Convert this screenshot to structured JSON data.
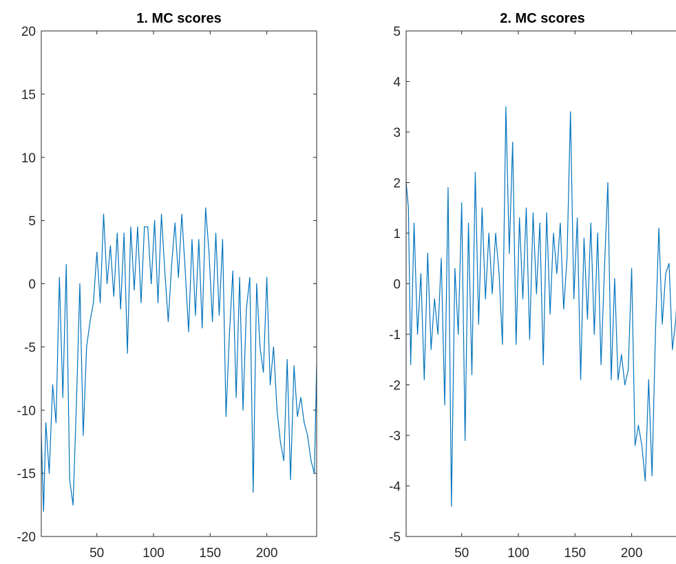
{
  "colors": {
    "line": "#0072BD",
    "axes": "#262626",
    "background": "#ffffff"
  },
  "chart_data": [
    {
      "type": "line",
      "title": "1. MC scores",
      "xlim": [
        1,
        244
      ],
      "ylim": [
        -20,
        20
      ],
      "xticks": [
        50,
        100,
        150,
        200
      ],
      "yticks": [
        -20,
        -15,
        -10,
        -5,
        0,
        5,
        10,
        15,
        20
      ],
      "xtick_labels": [
        "50",
        "100",
        "150",
        "200"
      ],
      "ytick_labels": [
        "-20",
        "-15",
        "-10",
        "-5",
        "0",
        "5",
        "10",
        "15",
        "20"
      ],
      "grid": false,
      "series": [
        {
          "x": [
            1,
            3,
            5,
            8,
            11,
            14,
            17,
            20,
            23,
            26,
            29,
            32,
            35,
            38,
            41,
            44,
            47,
            50,
            53,
            56,
            59,
            62,
            65,
            68,
            71,
            74,
            77,
            80,
            83,
            86,
            89,
            92,
            95,
            98,
            101,
            104,
            107,
            110,
            113,
            116,
            119,
            122,
            125,
            128,
            131,
            134,
            137,
            140,
            143,
            146,
            149,
            152,
            155,
            158,
            161,
            164,
            167,
            170,
            173,
            176,
            179,
            182,
            185,
            188,
            191,
            194,
            197,
            200,
            203,
            206,
            209,
            212,
            215,
            218,
            221,
            224,
            227,
            230,
            233,
            236,
            239,
            242,
            244
          ],
          "values": [
            -12.0,
            -18.0,
            -11.0,
            -15.0,
            -8.0,
            -11.0,
            0.5,
            -9.0,
            1.5,
            -15.5,
            -17.5,
            -9.5,
            0.0,
            -12.0,
            -5.0,
            -3.0,
            -1.5,
            2.5,
            -1.5,
            5.5,
            0.0,
            3.0,
            -1.0,
            4.0,
            -2.0,
            4.0,
            -5.5,
            4.5,
            -0.5,
            4.5,
            -1.5,
            4.5,
            4.5,
            0.0,
            5.0,
            -1.5,
            5.5,
            1.0,
            -3.0,
            1.5,
            4.8,
            0.5,
            5.5,
            1.0,
            -3.8,
            3.5,
            -2.5,
            3.5,
            -3.5,
            6.0,
            2.5,
            -3.0,
            4.0,
            -2.5,
            3.5,
            -10.5,
            -4.0,
            1.0,
            -9.0,
            0.5,
            -10.0,
            -2.0,
            0.5,
            -16.5,
            0.0,
            -5.0,
            -7.0,
            0.5,
            -8.0,
            -5.0,
            -10.0,
            -12.5,
            -14.0,
            -6.0,
            -15.5,
            -6.5,
            -10.5,
            -9.0,
            -11.0,
            -12.0,
            -14.0,
            -15.0,
            -6.5
          ]
        }
      ]
    },
    {
      "type": "line",
      "title": "2. MC scores",
      "xlim": [
        1,
        244
      ],
      "ylim": [
        -5,
        5
      ],
      "xticks": [
        50,
        100,
        150,
        200
      ],
      "yticks": [
        -5,
        -4,
        -3,
        -2,
        -1,
        0,
        1,
        2,
        3,
        4,
        5
      ],
      "xtick_labels": [
        "50",
        "100",
        "150",
        "200"
      ],
      "ytick_labels": [
        "-5",
        "-4",
        "-3",
        "-2",
        "-1",
        "0",
        "1",
        "2",
        "3",
        "4",
        "5"
      ],
      "grid": false,
      "series": [
        {
          "x": [
            1,
            3,
            5,
            8,
            11,
            14,
            17,
            20,
            23,
            26,
            29,
            32,
            35,
            38,
            41,
            44,
            47,
            50,
            53,
            56,
            59,
            62,
            65,
            68,
            71,
            74,
            77,
            80,
            83,
            86,
            89,
            92,
            95,
            98,
            101,
            104,
            107,
            110,
            113,
            116,
            119,
            122,
            125,
            128,
            131,
            134,
            137,
            140,
            143,
            146,
            149,
            152,
            155,
            158,
            161,
            164,
            167,
            170,
            173,
            176,
            179,
            182,
            185,
            188,
            191,
            194,
            197,
            200,
            203,
            206,
            209,
            212,
            215,
            218,
            221,
            224,
            227,
            230,
            233,
            236,
            239,
            242,
            244
          ],
          "values": [
            2.0,
            1.5,
            -1.6,
            1.2,
            -1.0,
            0.2,
            -1.9,
            0.6,
            -1.3,
            -0.3,
            -1.0,
            0.5,
            -2.4,
            1.9,
            -4.4,
            0.3,
            -1.0,
            1.6,
            -3.1,
            1.2,
            -1.8,
            2.2,
            -0.8,
            1.5,
            -0.3,
            1.0,
            -0.2,
            1.0,
            0.2,
            -1.2,
            3.5,
            0.6,
            2.8,
            -1.2,
            1.3,
            -0.3,
            1.5,
            -1.1,
            1.4,
            -0.2,
            1.2,
            -1.6,
            1.4,
            -0.6,
            1.0,
            0.2,
            1.2,
            -0.5,
            0.5,
            3.4,
            -0.3,
            1.3,
            -1.9,
            0.9,
            -0.7,
            1.2,
            -1.0,
            1.0,
            -1.6,
            0.3,
            2.0,
            -1.9,
            0.1,
            -1.9,
            -1.4,
            -2.0,
            -1.7,
            0.3,
            -3.2,
            -2.8,
            -3.2,
            -3.9,
            -1.9,
            -3.8,
            -1.0,
            1.1,
            -0.8,
            0.2,
            0.4,
            -1.3,
            -0.7,
            0.7,
            -2.5
          ]
        }
      ]
    }
  ]
}
